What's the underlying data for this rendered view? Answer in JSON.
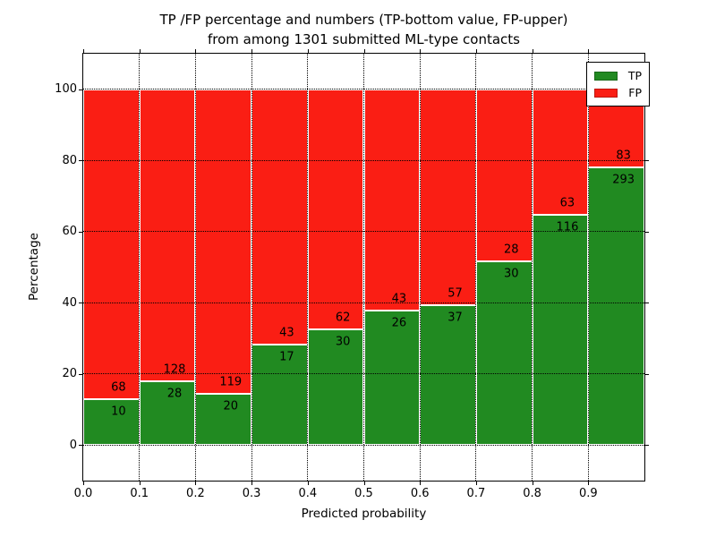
{
  "figure": {
    "title_line1": "TP /FP percentage and numbers (TP-bottom value, FP-upper)",
    "title_line2": "from among 1301 submitted ML-type contacts"
  },
  "chart_data": {
    "type": "bar",
    "stacked": true,
    "normalized": "each bar totals 100%",
    "title": "TP /FP percentage and numbers (TP-bottom value, FP-upper) from among 1301 submitted ML-type contacts",
    "xlabel": "Predicted probability",
    "ylabel": "Percentage",
    "xlim": [
      0.0,
      1.0
    ],
    "ylim": [
      -10,
      110
    ],
    "x_tick_labels": [
      "0.0",
      "0.1",
      "0.2",
      "0.3",
      "0.4",
      "0.5",
      "0.6",
      "0.7",
      "0.8",
      "0.9"
    ],
    "x_tick_values": [
      0.0,
      0.1,
      0.2,
      0.3,
      0.4,
      0.5,
      0.6,
      0.7,
      0.8,
      0.9
    ],
    "y_tick_values": [
      0,
      20,
      40,
      60,
      80,
      100
    ],
    "bin_width": 0.1,
    "bin_starts": [
      0.0,
      0.1,
      0.2,
      0.3,
      0.4,
      0.5,
      0.6,
      0.7,
      0.8,
      0.9
    ],
    "series": [
      {
        "name": "TP",
        "color": "#218a21",
        "counts": [
          10,
          28,
          20,
          17,
          30,
          26,
          37,
          30,
          116,
          293
        ]
      },
      {
        "name": "FP",
        "color": "#fa1e14",
        "counts": [
          68,
          128,
          119,
          43,
          62,
          43,
          57,
          28,
          63,
          83
        ]
      }
    ],
    "tp_pct": [
      12.8,
      17.9,
      14.4,
      28.3,
      32.6,
      37.7,
      39.4,
      51.7,
      64.8,
      77.9
    ],
    "total_contacts": 1301,
    "legend": {
      "position": "upper right",
      "entries": [
        "TP",
        "FP"
      ]
    },
    "grid": {
      "visible": true,
      "linestyle": "dotted",
      "color": "#000000"
    },
    "bar_edge_color": "#ffffff",
    "label_note": "TP-bottom value, FP-upper"
  }
}
